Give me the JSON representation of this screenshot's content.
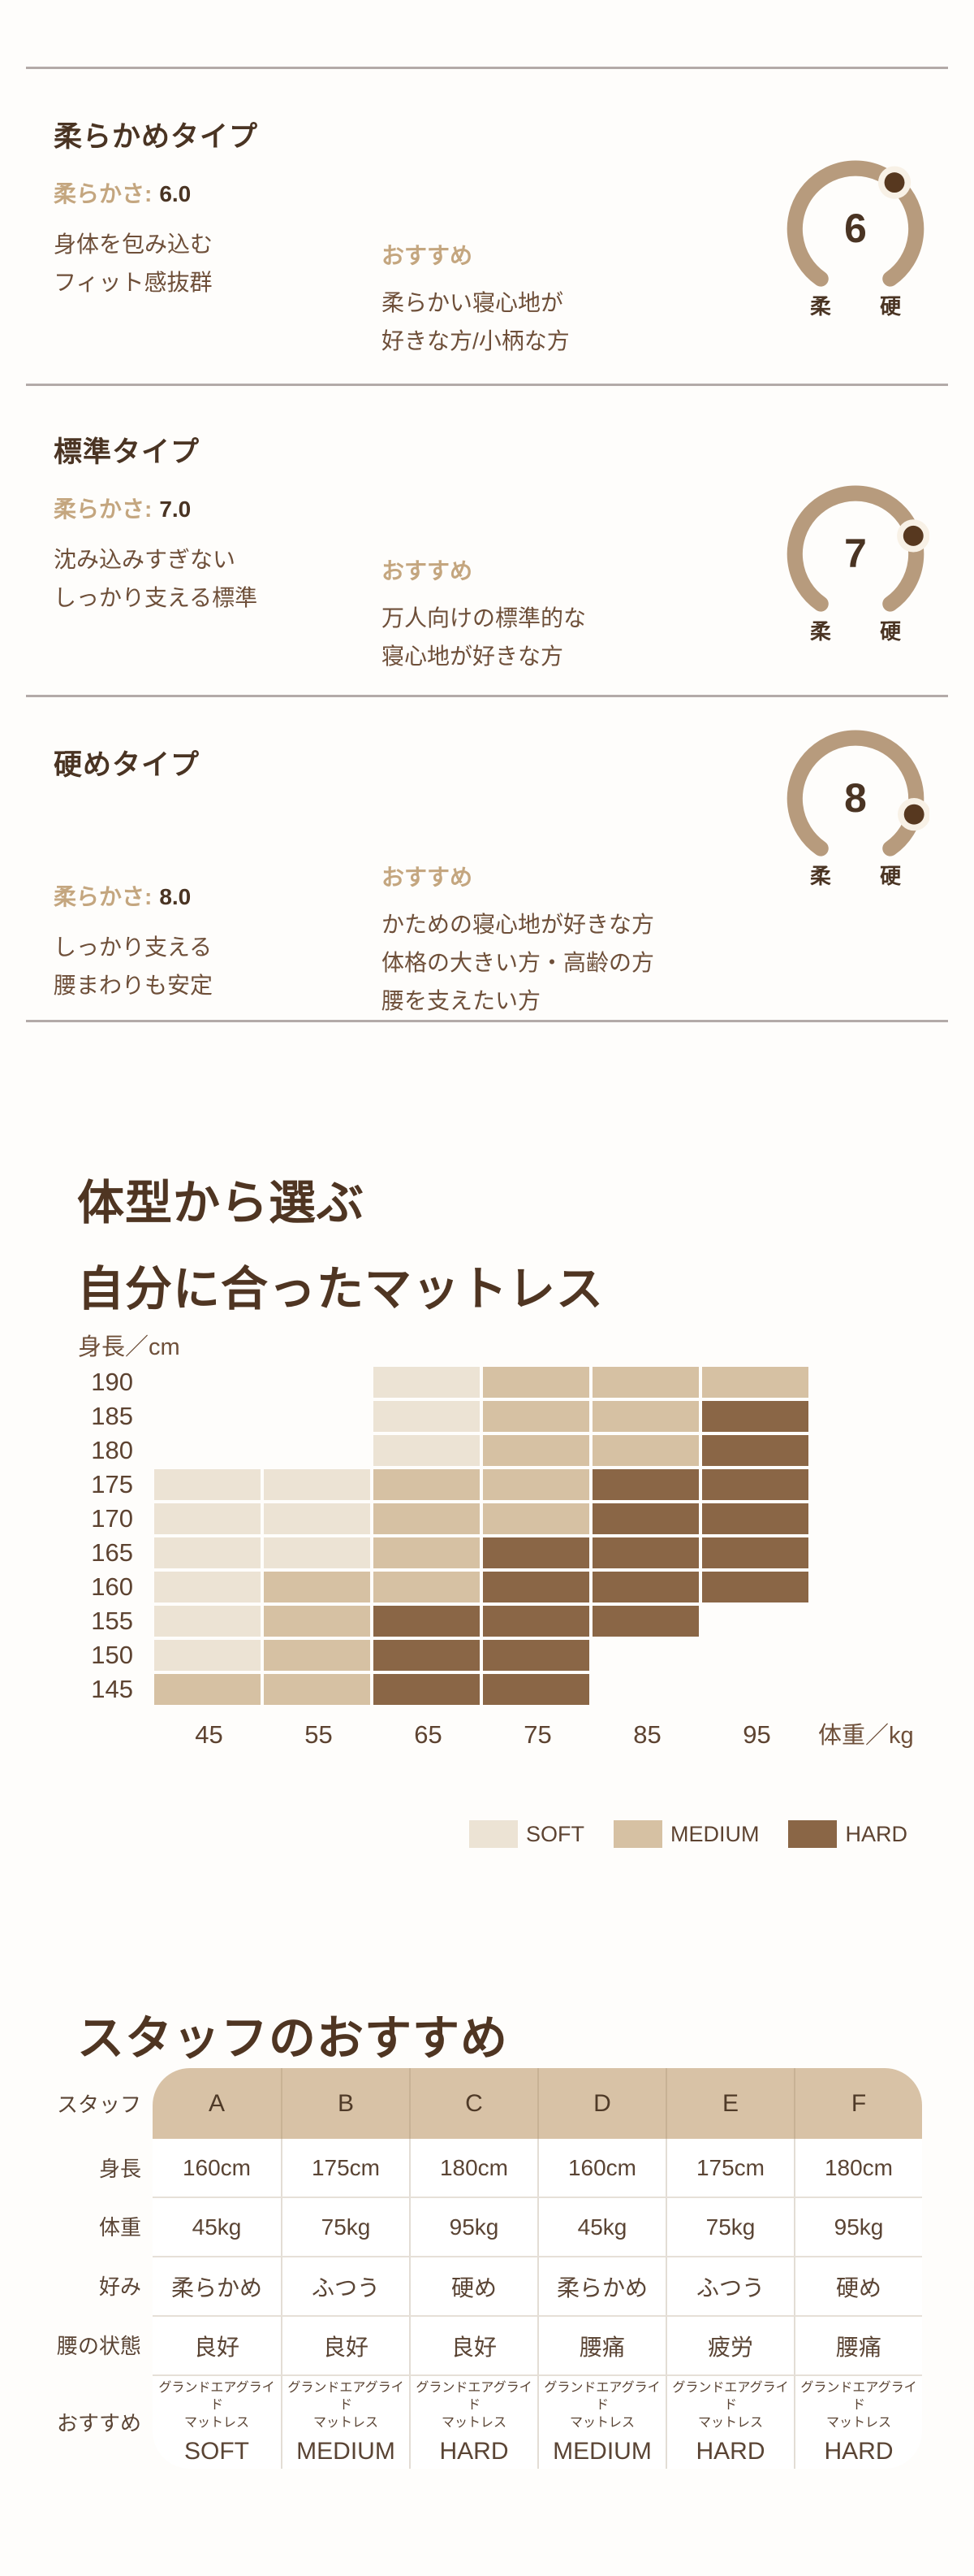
{
  "colors": {
    "accent_tan": "#c4a67f",
    "heading_brown": "#4a3423",
    "body_brown": "#6e4f39",
    "gauge_arc": "#b79b7d",
    "gauge_dot": "#57381f"
  },
  "sections": [
    {
      "title": "柔らかめタイプ",
      "softness_label": "柔らかさ:",
      "softness_value": "6.0",
      "description_lines": [
        "身体を包み込む",
        "フィット感抜群"
      ],
      "recommend_label": "おすすめ",
      "recommend_lines": [
        "柔らかい寝心地が",
        "好きな方/小柄な方"
      ],
      "gauge": {
        "value": 6,
        "display": "6",
        "left_label": "柔",
        "right_label": "硬"
      }
    },
    {
      "title": "標準タイプ",
      "softness_label": "柔らかさ:",
      "softness_value": "7.0",
      "description_lines": [
        "沈み込みすぎない",
        "しっかり支える標準"
      ],
      "recommend_label": "おすすめ",
      "recommend_lines": [
        "万人向けの標準的な",
        "寝心地が好きな方"
      ],
      "gauge": {
        "value": 7,
        "display": "7",
        "left_label": "柔",
        "right_label": "硬"
      }
    },
    {
      "title": "硬めタイプ",
      "softness_label": "柔らかさ:",
      "softness_value": "8.0",
      "description_lines": [
        "しっかり支える",
        "腰まわりも安定"
      ],
      "recommend_label": "おすすめ",
      "recommend_lines": [
        "かための寝心地が好きな方",
        "体格の大きい方・高齢の方",
        "腰を支えたい方"
      ],
      "gauge": {
        "value": 8,
        "display": "8",
        "left_label": "柔",
        "right_label": "硬"
      }
    }
  ],
  "body_type_section": {
    "heading_lines": [
      "体型から選ぶ",
      "自分に合ったマットレス"
    ]
  },
  "chart_data": {
    "type": "heatmap",
    "y_axis_label": "身長／cm",
    "x_axis_label": "体重／kg",
    "y_ticks": [
      "190",
      "185",
      "180",
      "175",
      "170",
      "165",
      "160",
      "155",
      "150",
      "145"
    ],
    "x_ticks": [
      "45",
      "55",
      "65",
      "75",
      "85",
      "95"
    ],
    "rows": [
      [
        "",
        "",
        "SOFT",
        "MEDIUM",
        "MEDIUM",
        "MEDIUM"
      ],
      [
        "",
        "",
        "SOFT",
        "MEDIUM",
        "MEDIUM",
        "HARD"
      ],
      [
        "",
        "",
        "SOFT",
        "MEDIUM",
        "MEDIUM",
        "HARD"
      ],
      [
        "SOFT",
        "SOFT",
        "MEDIUM",
        "MEDIUM",
        "HARD",
        "HARD"
      ],
      [
        "SOFT",
        "SOFT",
        "MEDIUM",
        "MEDIUM",
        "HARD",
        "HARD"
      ],
      [
        "SOFT",
        "SOFT",
        "MEDIUM",
        "HARD",
        "HARD",
        "HARD"
      ],
      [
        "SOFT",
        "MEDIUM",
        "MEDIUM",
        "HARD",
        "HARD",
        "HARD"
      ],
      [
        "SOFT",
        "MEDIUM",
        "HARD",
        "HARD",
        "HARD",
        ""
      ],
      [
        "SOFT",
        "MEDIUM",
        "HARD",
        "HARD",
        "",
        ""
      ],
      [
        "MEDIUM",
        "MEDIUM",
        "HARD",
        "HARD",
        "",
        ""
      ]
    ],
    "palette": {
      "SOFT": "#ece3d4",
      "MEDIUM": "#d6c1a3",
      "HARD": "#8a6646"
    },
    "legend": [
      "SOFT",
      "MEDIUM",
      "HARD"
    ]
  },
  "staff_section": {
    "heading": "スタッフのおすすめ",
    "table": {
      "corner_label": "スタッフ",
      "columns": [
        "A",
        "B",
        "C",
        "D",
        "E",
        "F"
      ],
      "rows": [
        {
          "label": "身長",
          "values": [
            "160cm",
            "175cm",
            "180cm",
            "160cm",
            "175cm",
            "180cm"
          ]
        },
        {
          "label": "体重",
          "values": [
            "45kg",
            "75kg",
            "95kg",
            "45kg",
            "75kg",
            "95kg"
          ]
        },
        {
          "label": "好み",
          "values": [
            "柔らかめ",
            "ふつう",
            "硬め",
            "柔らかめ",
            "ふつう",
            "硬め"
          ]
        },
        {
          "label": "腰の状態",
          "values": [
            "良好",
            "良好",
            "良好",
            "腰痛",
            "疲労",
            "腰痛"
          ]
        }
      ],
      "recommend_row": {
        "label": "おすすめ",
        "product_lines": [
          "グランドエアグライド",
          "マットレス"
        ],
        "grades": [
          "SOFT",
          "MEDIUM",
          "HARD",
          "MEDIUM",
          "HARD",
          "HARD"
        ]
      }
    }
  }
}
